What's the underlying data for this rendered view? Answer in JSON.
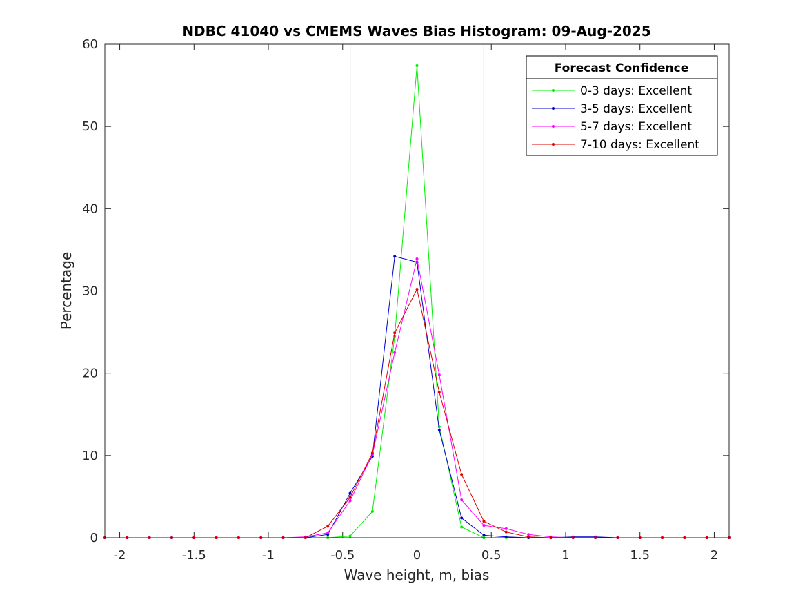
{
  "chart_data": {
    "type": "line",
    "title": "NDBC 41040 vs CMEMS Waves Bias Histogram: 09-Aug-2025",
    "xlabel": "Wave height, m, bias",
    "ylabel": "Percentage",
    "xlim": [
      -2.1,
      2.1
    ],
    "ylim": [
      0,
      60
    ],
    "xticks": [
      -2,
      -1.5,
      -1,
      -0.5,
      0,
      0.5,
      1,
      1.5,
      2
    ],
    "xtick_labels": [
      "-2",
      "-1.5",
      "-1",
      "-0.5",
      "0",
      "0.5",
      "1",
      "1.5",
      "2"
    ],
    "yticks": [
      0,
      10,
      20,
      30,
      40,
      50,
      60
    ],
    "ytick_labels": [
      "0",
      "10",
      "20",
      "30",
      "40",
      "50",
      "60"
    ],
    "grid": false,
    "vertical_lines": [
      {
        "x": -0.45,
        "style": "solid",
        "color": "#000000"
      },
      {
        "x": 0,
        "style": "dotted",
        "color": "#000000"
      },
      {
        "x": 0.45,
        "style": "solid",
        "color": "#000000"
      }
    ],
    "legend": {
      "title": "Forecast Confidence",
      "position": "top-right"
    },
    "x": [
      -2.1,
      -1.95,
      -1.8,
      -1.65,
      -1.5,
      -1.35,
      -1.2,
      -1.05,
      -0.9,
      -0.75,
      -0.6,
      -0.45,
      -0.3,
      -0.15,
      0,
      0.15,
      0.3,
      0.45,
      0.6,
      0.75,
      0.9,
      1.05,
      1.2,
      1.35,
      1.5,
      1.65,
      1.8,
      1.95,
      2.1
    ],
    "series": [
      {
        "name": "0-3 days: Excellent",
        "color": "#00ee00",
        "values": [
          0,
          0,
          0,
          0,
          0,
          0,
          0,
          0,
          0,
          0,
          0,
          0.2,
          3.2,
          24.5,
          57.4,
          13.5,
          1.3,
          0,
          0,
          0,
          0,
          0,
          0,
          0,
          0,
          0,
          0,
          0,
          0
        ]
      },
      {
        "name": "3-5 days: Excellent",
        "color": "#0000cc",
        "values": [
          0,
          0,
          0,
          0,
          0,
          0,
          0,
          0,
          0,
          0,
          0.4,
          5.4,
          9.9,
          34.2,
          33.5,
          13.1,
          2.4,
          0.3,
          0.1,
          0,
          0,
          0.1,
          0.1,
          0,
          0,
          0,
          0,
          0,
          0
        ]
      },
      {
        "name": "5-7 days: Excellent",
        "color": "#ff00ff",
        "values": [
          0,
          0,
          0,
          0,
          0,
          0,
          0,
          0,
          0,
          0.1,
          0.6,
          4.5,
          10.1,
          22.5,
          33.9,
          19.8,
          4.6,
          1.5,
          1.1,
          0.4,
          0.1,
          0,
          0,
          0,
          0,
          0,
          0,
          0,
          0
        ]
      },
      {
        "name": "7-10 days: Excellent",
        "color": "#dd0000",
        "values": [
          0,
          0,
          0,
          0,
          0,
          0,
          0,
          0,
          0,
          0,
          1.4,
          4.9,
          10.3,
          24.9,
          30.2,
          17.7,
          7.7,
          2.0,
          0.7,
          0.1,
          0,
          0,
          0,
          0,
          0,
          0,
          0,
          0,
          0
        ]
      }
    ]
  }
}
